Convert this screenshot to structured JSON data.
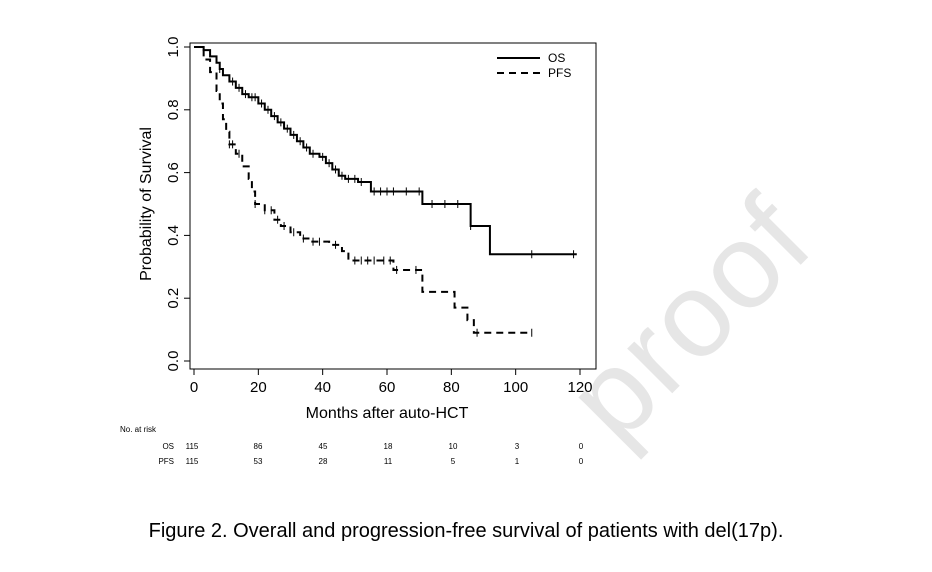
{
  "watermark": "proof",
  "caption": "Figure 2. Overall and progression-free survival of patients with del(17p).",
  "chart_data": {
    "type": "line",
    "xlabel": "Months after auto-HCT",
    "ylabel": "Probability of Survival",
    "xlim": [
      0,
      120
    ],
    "ylim": [
      0,
      1
    ],
    "xticks": [
      "0",
      "20",
      "40",
      "60",
      "80",
      "100",
      "120"
    ],
    "yticks": [
      "0.0",
      "0.2",
      "0.4",
      "0.6",
      "0.8",
      "1.0"
    ],
    "legend_position": "top-right",
    "series": [
      {
        "name": "OS",
        "style": "solid",
        "steps": [
          [
            0,
            1.0
          ],
          [
            3,
            0.99
          ],
          [
            5,
            0.97
          ],
          [
            7,
            0.95
          ],
          [
            8,
            0.93
          ],
          [
            9,
            0.91
          ],
          [
            11,
            0.89
          ],
          [
            13,
            0.87
          ],
          [
            15,
            0.85
          ],
          [
            17,
            0.84
          ],
          [
            20,
            0.82
          ],
          [
            22,
            0.8
          ],
          [
            24,
            0.78
          ],
          [
            26,
            0.76
          ],
          [
            28,
            0.74
          ],
          [
            30,
            0.72
          ],
          [
            32,
            0.7
          ],
          [
            34,
            0.68
          ],
          [
            36,
            0.66
          ],
          [
            39,
            0.65
          ],
          [
            41,
            0.63
          ],
          [
            43,
            0.61
          ],
          [
            45,
            0.59
          ],
          [
            47,
            0.58
          ],
          [
            51,
            0.57
          ],
          [
            55,
            0.54
          ],
          [
            71,
            0.5
          ],
          [
            86,
            0.43
          ],
          [
            92,
            0.34
          ],
          [
            119,
            0.34
          ]
        ],
        "censor_x": [
          8,
          12,
          14,
          16,
          18,
          19,
          21,
          23,
          25,
          27,
          29,
          31,
          33,
          35,
          37,
          40,
          42,
          44,
          46,
          48,
          50,
          52,
          56,
          58,
          60,
          62,
          66,
          70,
          74,
          78,
          82,
          86,
          105,
          118
        ]
      },
      {
        "name": "PFS",
        "style": "dashed",
        "steps": [
          [
            0,
            1.0
          ],
          [
            3,
            0.96
          ],
          [
            5,
            0.92
          ],
          [
            7,
            0.86
          ],
          [
            8,
            0.82
          ],
          [
            9,
            0.77
          ],
          [
            10,
            0.73
          ],
          [
            11,
            0.69
          ],
          [
            13,
            0.66
          ],
          [
            15,
            0.62
          ],
          [
            17,
            0.58
          ],
          [
            18,
            0.54
          ],
          [
            19,
            0.5
          ],
          [
            22,
            0.48
          ],
          [
            25,
            0.45
          ],
          [
            27,
            0.43
          ],
          [
            30,
            0.41
          ],
          [
            33,
            0.39
          ],
          [
            36,
            0.38
          ],
          [
            42,
            0.37
          ],
          [
            46,
            0.35
          ],
          [
            48,
            0.32
          ],
          [
            62,
            0.29
          ],
          [
            71,
            0.22
          ],
          [
            81,
            0.17
          ],
          [
            85,
            0.13
          ],
          [
            87,
            0.09
          ],
          [
            105,
            0.09
          ]
        ],
        "censor_x": [
          11,
          12,
          14,
          19,
          22,
          24,
          26,
          28,
          31,
          34,
          37,
          39,
          44,
          50,
          52,
          54,
          56,
          59,
          61,
          63,
          69,
          88,
          105
        ]
      }
    ],
    "at_risk": {
      "header": "No. at risk",
      "times": [
        0,
        20,
        40,
        60,
        80,
        100,
        120
      ],
      "rows": [
        {
          "label": "OS",
          "values": [
            "115",
            "86",
            "45",
            "18",
            "10",
            "3",
            "0"
          ]
        },
        {
          "label": "PFS",
          "values": [
            "115",
            "53",
            "28",
            "11",
            "5",
            "1",
            "0"
          ]
        }
      ]
    }
  }
}
